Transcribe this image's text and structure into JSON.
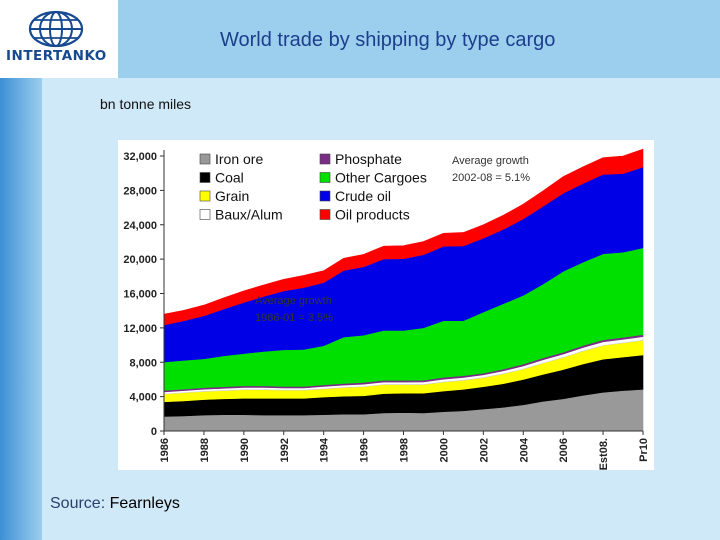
{
  "header": {
    "title": "World trade by shipping by type cargo",
    "logo_text": "INTERTANKO"
  },
  "units_label": "bn tonne miles",
  "source": {
    "prefix": "Source:",
    "name": "Fearnleys"
  },
  "colors": {
    "header_band": "#9ccfee",
    "background": "#cfe9f8",
    "title": "#1c3e8c"
  },
  "chart_data": {
    "type": "area",
    "stacked": true,
    "title": "World trade by shipping by type cargo",
    "ylabel": "bn tonne miles",
    "ylim": [
      0,
      32000
    ],
    "yticks": [
      0,
      4000,
      8000,
      12000,
      16000,
      20000,
      24000,
      28000,
      32000
    ],
    "ytick_labels": [
      "0",
      "4,000",
      "8,000",
      "12,000",
      "16,000",
      "20,000",
      "24,000",
      "28,000",
      "32,000"
    ],
    "x_tick_labels": [
      "1986",
      "1988",
      "1990",
      "1992",
      "1994",
      "1996",
      "1998",
      "2000",
      "2002",
      "2004",
      "2006",
      "Est08.",
      "Pr10"
    ],
    "categories": [
      "1986",
      "1987",
      "1988",
      "1989",
      "1990",
      "1991",
      "1992",
      "1993",
      "1994",
      "1995",
      "1996",
      "1997",
      "1998",
      "1999",
      "2000",
      "2001",
      "2002",
      "2003",
      "2004",
      "2005",
      "2006",
      "2007",
      "Est08.",
      "2009",
      "Pr10"
    ],
    "series": [
      {
        "name": "Iron ore",
        "color": "#999999",
        "values": [
          1700,
          1750,
          1850,
          1900,
          1900,
          1850,
          1850,
          1850,
          1900,
          1950,
          1950,
          2100,
          2150,
          2100,
          2250,
          2350,
          2550,
          2750,
          3050,
          3450,
          3750,
          4150,
          4500,
          4700,
          4850
        ]
      },
      {
        "name": "Coal",
        "color": "#000000",
        "values": [
          1700,
          1750,
          1800,
          1850,
          1900,
          1950,
          1950,
          1950,
          2050,
          2100,
          2150,
          2250,
          2250,
          2300,
          2400,
          2500,
          2600,
          2750,
          2950,
          3150,
          3400,
          3650,
          3850,
          3900,
          4000
        ]
      },
      {
        "name": "Grain",
        "color": "#ffff00",
        "values": [
          900,
          950,
          950,
          950,
          1000,
          1000,
          950,
          950,
          950,
          1000,
          1050,
          1050,
          1000,
          1000,
          1050,
          1050,
          1050,
          1150,
          1200,
          1300,
          1400,
          1500,
          1600,
          1650,
          1700
        ]
      },
      {
        "name": "Baux/Alum",
        "color": "#ffffff",
        "values": [
          250,
          250,
          260,
          260,
          270,
          270,
          260,
          260,
          280,
          290,
          300,
          300,
          300,
          310,
          330,
          330,
          330,
          350,
          370,
          390,
          400,
          420,
          430,
          420,
          430
        ]
      },
      {
        "name": "Phosphate",
        "color": "#7a2d85",
        "values": [
          180,
          180,
          190,
          190,
          190,
          190,
          180,
          180,
          190,
          190,
          200,
          200,
          200,
          200,
          210,
          210,
          200,
          210,
          210,
          220,
          220,
          230,
          230,
          230,
          230
        ]
      },
      {
        "name": "Other Cargoes",
        "color": "#00e000",
        "values": [
          3300,
          3350,
          3350,
          3600,
          3750,
          4000,
          4250,
          4300,
          4550,
          5400,
          5500,
          5800,
          5800,
          6100,
          6600,
          6400,
          7100,
          7600,
          8000,
          8600,
          9400,
          9700,
          10000,
          9900,
          10100
        ]
      },
      {
        "name": "Crude oil",
        "color": "#0000e6",
        "values": [
          4300,
          4600,
          5000,
          5450,
          5950,
          6400,
          6850,
          7200,
          7350,
          7750,
          7950,
          8300,
          8350,
          8500,
          8650,
          8700,
          8600,
          8650,
          8900,
          9050,
          9100,
          9150,
          9250,
          9150,
          9400
        ]
      },
      {
        "name": "Oil products",
        "color": "#ff0000",
        "values": [
          1270,
          1220,
          1250,
          1300,
          1340,
          1340,
          1360,
          1410,
          1380,
          1420,
          1450,
          1500,
          1510,
          1540,
          1510,
          1560,
          1570,
          1640,
          1720,
          1800,
          1930,
          1950,
          1940,
          2050,
          2090
        ]
      }
    ],
    "legend": [
      {
        "label": "Iron ore",
        "color": "#999999"
      },
      {
        "label": "Coal",
        "color": "#000000"
      },
      {
        "label": "Grain",
        "color": "#ffff00"
      },
      {
        "label": "Baux/Alum",
        "color": "#ffffff"
      },
      {
        "label": "Phosphate",
        "color": "#7a2d85"
      },
      {
        "label": "Other Cargoes",
        "color": "#00e000"
      },
      {
        "label": "Crude oil",
        "color": "#0000e6"
      },
      {
        "label": "Oil products",
        "color": "#ff0000"
      }
    ],
    "annotations": [
      {
        "lines": [
          "Average growth",
          "2002-08 = 5.1%"
        ]
      },
      {
        "lines": [
          "Average growth",
          "1986-01 = 3.5%"
        ]
      }
    ]
  }
}
